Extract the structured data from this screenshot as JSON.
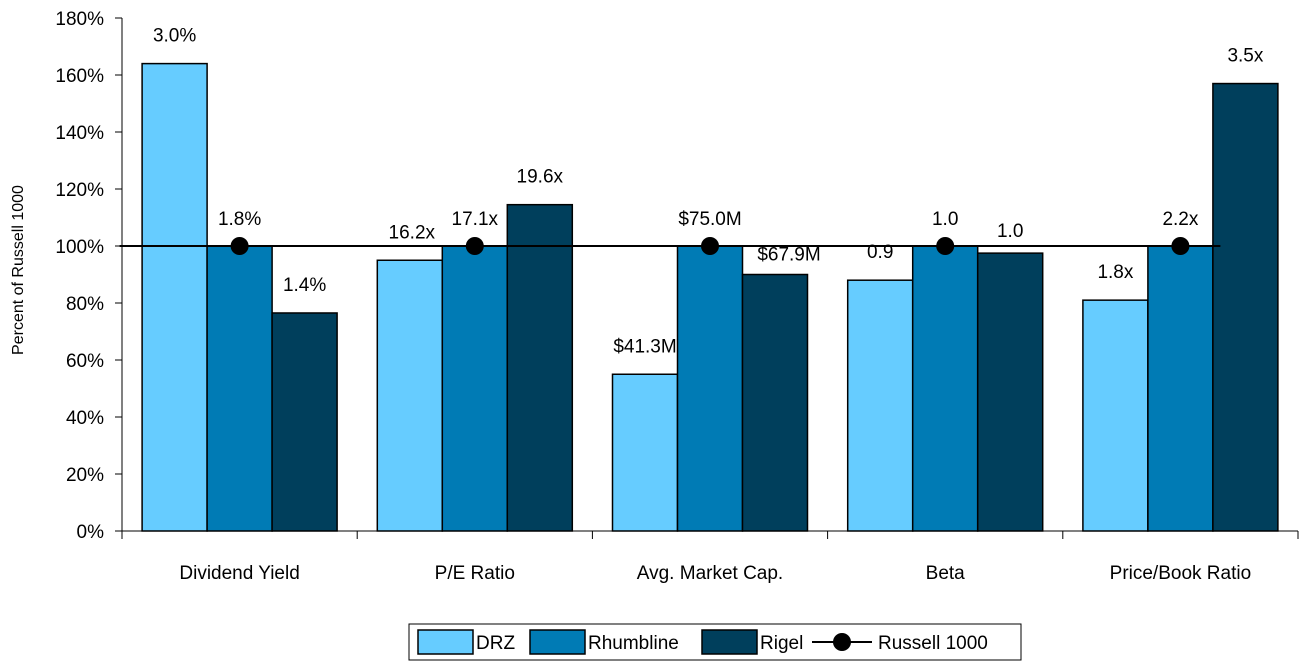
{
  "chart_data": {
    "type": "bar",
    "ylabel": "Percent of Russell 1000",
    "ylim": [
      0,
      180
    ],
    "yticks": [
      "0%",
      "20%",
      "40%",
      "60%",
      "80%",
      "100%",
      "120%",
      "140%",
      "160%",
      "180%"
    ],
    "categories": [
      "Dividend Yield",
      "P/E Ratio",
      "Avg. Market Cap.",
      "Beta",
      "Price/Book Ratio"
    ],
    "series": [
      {
        "name": "DRZ",
        "color": "#66ccff",
        "values": [
          164,
          95,
          55,
          88,
          81
        ],
        "labels": [
          "3.0%",
          "16.2x",
          "$41.3M",
          "0.9",
          "1.8x"
        ]
      },
      {
        "name": "Rhumbline",
        "color": "#007bb5",
        "values": [
          100,
          100,
          100,
          100,
          100
        ],
        "labels": [
          "1.8%",
          "17.1x",
          "$75.0M",
          "1.0",
          "2.2x"
        ]
      },
      {
        "name": "Rigel",
        "color": "#003f5c",
        "values": [
          76.5,
          114.5,
          90,
          97.5,
          157
        ],
        "labels": [
          "1.4%",
          "19.6x",
          "$67.9M",
          "1.0",
          "3.5x"
        ]
      }
    ],
    "line": {
      "name": "Russell 1000",
      "values": [
        100,
        100,
        100,
        100,
        100
      ],
      "color": "#000000"
    },
    "legend_position": "bottom",
    "grid": false
  }
}
